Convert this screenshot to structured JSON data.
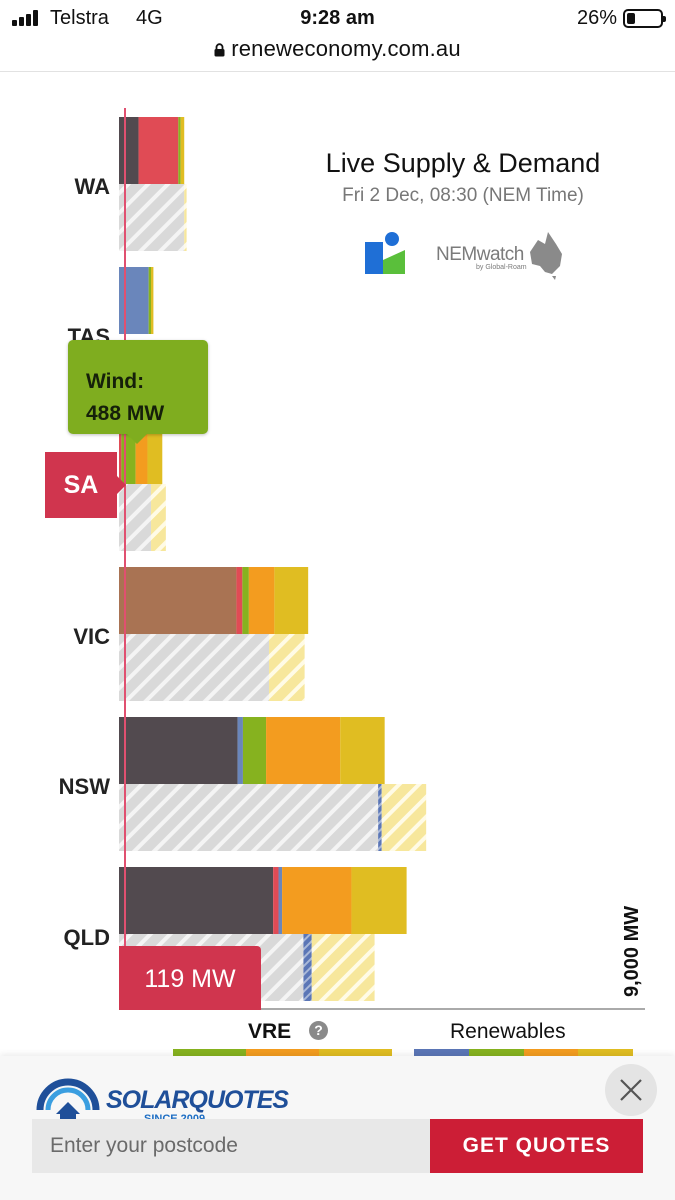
{
  "status_bar": {
    "carrier": "Telstra",
    "network": "4G",
    "time": "9:28 am",
    "battery": "26%",
    "battery_level": 0.26
  },
  "browser": {
    "url": "reneweconomy.com.au"
  },
  "panel": {
    "title": "Live Supply & Demand",
    "subtitle": "Fri 2 Dec, 08:30 (NEM Time)",
    "logo_text": "NEMwatch",
    "logo_subtext": "by Global-Roam"
  },
  "chart_data": {
    "type": "bar",
    "orientation": "horizontal",
    "scale_max_mw": 9000,
    "axis_label": "9,000 MW",
    "categories": [
      "WA",
      "TAS",
      "SA",
      "VIC",
      "NSW",
      "QLD"
    ],
    "fuel_colors": {
      "coal": "#524a4f",
      "brown_coal": "#a97353",
      "gas": "#e04b55",
      "hydro": "#6a86bb",
      "wind": "#86b21f",
      "rooftop_pv": "#f39c1f",
      "utility_solar": "#e0bd22",
      "battery": "#e7d43a",
      "demand": "#d6d6d6"
    },
    "supply": [
      {
        "region": "WA",
        "segments": [
          [
            "coal",
            330
          ],
          [
            "gas",
            670
          ],
          [
            "wind",
            40
          ],
          [
            "utility_solar",
            60
          ]
        ]
      },
      {
        "region": "TAS",
        "segments": [
          [
            "hydro",
            500
          ],
          [
            "wind",
            40
          ],
          [
            "utility_solar",
            40
          ]
        ]
      },
      {
        "region": "SA",
        "segments": [
          [
            "gas",
            40
          ],
          [
            "wind",
            240
          ],
          [
            "rooftop_pv",
            200
          ],
          [
            "utility_solar",
            250
          ]
        ]
      },
      {
        "region": "VIC",
        "segments": [
          [
            "brown_coal",
            1980
          ],
          [
            "gas",
            100
          ],
          [
            "wind",
            110
          ],
          [
            "rooftop_pv",
            430
          ],
          [
            "utility_solar",
            570
          ]
        ]
      },
      {
        "region": "NSW",
        "segments": [
          [
            "coal",
            2000
          ],
          [
            "hydro",
            90
          ],
          [
            "wind",
            390
          ],
          [
            "rooftop_pv",
            1250
          ],
          [
            "utility_solar",
            750
          ]
        ]
      },
      {
        "region": "QLD",
        "segments": [
          [
            "coal",
            2600
          ],
          [
            "gas",
            90
          ],
          [
            "hydro",
            60
          ],
          [
            "rooftop_pv",
            1170
          ],
          [
            "utility_solar",
            930
          ]
        ]
      }
    ],
    "demand": [
      {
        "region": "WA",
        "grid_mw": 1100,
        "rooftop_mw": 40
      },
      {
        "region": "TAS",
        "grid_mw": 0,
        "rooftop_mw": 0
      },
      {
        "region": "SA",
        "grid_mw": 540,
        "rooftop_mw": 250
      },
      {
        "region": "VIC",
        "grid_mw": 2530,
        "rooftop_mw": 600
      },
      {
        "region": "NSW",
        "grid_mw": 4370,
        "rooftop_mw": 750,
        "hydro_mw": 60
      },
      {
        "region": "QLD",
        "grid_mw": 3110,
        "rooftop_mw": 1060,
        "hydro_mw": 140
      }
    ],
    "tooltip": {
      "line1": "Wind:",
      "line2": "488 MW"
    },
    "region_tag": "SA",
    "value_tag": "119 MW"
  },
  "legend": {
    "vre_label": "VRE",
    "renewables_label": "Renewables",
    "vre_colors": [
      "#86b21f",
      "#f39c1f",
      "#e0bd22"
    ],
    "renewables_colors": [
      "#5b76b6",
      "#86b21f",
      "#f39c1f",
      "#e0bd22"
    ]
  },
  "ad": {
    "brand": "SOLARQUOTES",
    "since": "SINCE 2009",
    "postcode_placeholder": "Enter your postcode",
    "cta": "GET QUOTES"
  }
}
